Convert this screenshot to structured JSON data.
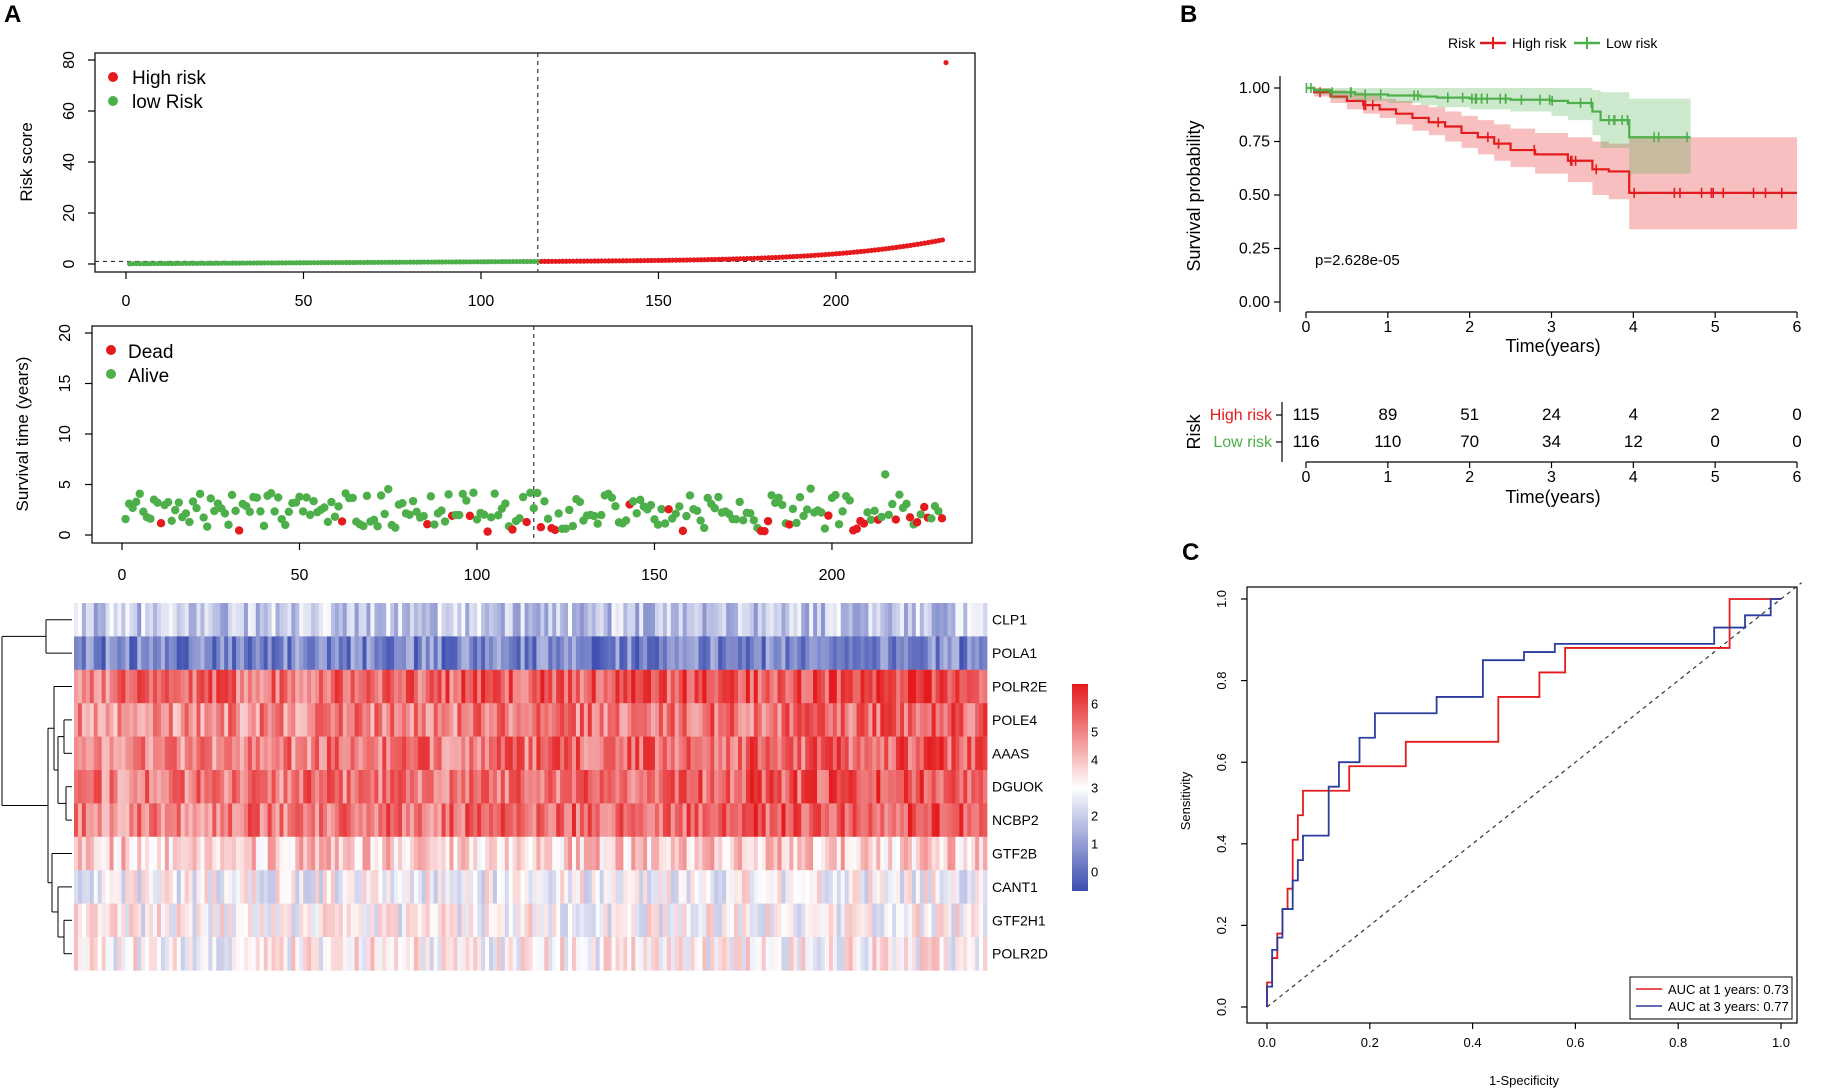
{
  "panels": {
    "a": "A",
    "b": "B",
    "c": "C"
  },
  "colors": {
    "red": "#e41a1c",
    "green": "#4daf4a",
    "blue": "#3b4cb0",
    "aucRed": "#e41a1c",
    "aucBlue": "#2b3d9e"
  },
  "chart_data": [
    {
      "id": "risk-score",
      "type": "scatter",
      "ylabel": "Risk score",
      "xlim": [
        0,
        231
      ],
      "ylim": [
        0,
        80
      ],
      "xticks": [
        "0",
        "50",
        "100",
        "150",
        "200"
      ],
      "yticks": [
        "0",
        "20",
        "40",
        "60",
        "80"
      ],
      "cutoff_index": 116,
      "cutoff_value": 1,
      "n_patients": 231,
      "legend": [
        {
          "label": "High risk",
          "color": "#e41a1c"
        },
        {
          "label": "low Risk",
          "color": "#4daf4a"
        }
      ],
      "max_point": {
        "x": 231,
        "y": 79
      }
    },
    {
      "id": "survival-time",
      "type": "scatter",
      "ylabel": "Survival time (years)",
      "xlim": [
        0,
        231
      ],
      "ylim": [
        0,
        20
      ],
      "xticks": [
        "0",
        "50",
        "100",
        "150",
        "200"
      ],
      "yticks": [
        "0",
        "5",
        "10",
        "15",
        "20"
      ],
      "cutoff_index": 116,
      "legend": [
        {
          "label": "Dead",
          "color": "#e41a1c"
        },
        {
          "label": "Alive",
          "color": "#4daf4a"
        }
      ]
    },
    {
      "id": "heatmap",
      "type": "heatmap",
      "genes": [
        "CLP1",
        "POLA1",
        "POLR2E",
        "POLE4",
        "AAAS",
        "DGUOK",
        "NCBP2",
        "GTF2B",
        "CANT1",
        "GTF2H1",
        "POLR2D"
      ],
      "gene_means": [
        1.9,
        0.5,
        5.2,
        4.7,
        4.9,
        5.0,
        5.0,
        3.8,
        2.9,
        3.0,
        3.1
      ],
      "colorbar_ticks": [
        "6",
        "5",
        "4",
        "3",
        "2",
        "1",
        "0"
      ],
      "colorbar_range": [
        -0.7,
        6.7
      ]
    },
    {
      "id": "km",
      "type": "line",
      "title_legend": "Risk",
      "xlabel": "Time(years)",
      "ylabel": "Survival probability",
      "xlim": [
        0,
        6
      ],
      "ylim": [
        0,
        1
      ],
      "xticks": [
        "0",
        "1",
        "2",
        "3",
        "4",
        "5",
        "6"
      ],
      "yticks": [
        "0.00",
        "0.25",
        "0.50",
        "0.75",
        "1.00"
      ],
      "pvalue": "p=2.628e-05",
      "series": [
        {
          "name": "High risk",
          "color": "#e41a1c",
          "x": [
            0,
            0.1,
            0.3,
            0.5,
            0.7,
            0.9,
            1.1,
            1.3,
            1.5,
            1.7,
            1.9,
            2.1,
            2.3,
            2.5,
            2.8,
            3.2,
            3.5,
            3.7,
            3.95,
            6
          ],
          "y": [
            1.0,
            0.98,
            0.96,
            0.94,
            0.92,
            0.9,
            0.88,
            0.86,
            0.84,
            0.82,
            0.79,
            0.77,
            0.74,
            0.71,
            0.69,
            0.66,
            0.62,
            0.61,
            0.51,
            0.51
          ],
          "lo": [
            1.0,
            0.96,
            0.93,
            0.9,
            0.88,
            0.86,
            0.83,
            0.8,
            0.78,
            0.75,
            0.72,
            0.69,
            0.66,
            0.63,
            0.6,
            0.56,
            0.5,
            0.48,
            0.34,
            0.34
          ],
          "hi": [
            1.0,
            1.0,
            0.99,
            0.98,
            0.97,
            0.95,
            0.94,
            0.92,
            0.91,
            0.89,
            0.87,
            0.85,
            0.83,
            0.81,
            0.79,
            0.77,
            0.75,
            0.74,
            0.77,
            0.77
          ]
        },
        {
          "name": "Low risk",
          "color": "#4daf4a",
          "x": [
            0,
            0.1,
            0.3,
            0.6,
            1.0,
            1.4,
            1.6,
            2.0,
            2.5,
            3.0,
            3.2,
            3.5,
            3.6,
            3.95,
            4.7
          ],
          "y": [
            1.0,
            0.99,
            0.98,
            0.97,
            0.965,
            0.96,
            0.955,
            0.95,
            0.945,
            0.94,
            0.93,
            0.89,
            0.85,
            0.77,
            0.77
          ],
          "lo": [
            1.0,
            0.97,
            0.95,
            0.94,
            0.93,
            0.92,
            0.91,
            0.9,
            0.89,
            0.87,
            0.85,
            0.78,
            0.72,
            0.6,
            0.6
          ],
          "hi": [
            1.0,
            1.0,
            1.0,
            1.0,
            1.0,
            1.0,
            1.0,
            1.0,
            1.0,
            1.0,
            1.0,
            0.99,
            0.98,
            0.95,
            0.95
          ]
        }
      ]
    },
    {
      "id": "risk-table",
      "type": "table",
      "ylabel": "Risk",
      "xlabel": "Time(years)",
      "xticks": [
        "0",
        "1",
        "2",
        "3",
        "4",
        "5",
        "6"
      ],
      "rows": [
        {
          "name": "High risk",
          "color": "#e41a1c",
          "values": [
            "115",
            "89",
            "51",
            "24",
            "4",
            "2",
            "0"
          ]
        },
        {
          "name": "Low risk",
          "color": "#4daf4a",
          "values": [
            "116",
            "110",
            "70",
            "34",
            "12",
            "0",
            "0"
          ]
        }
      ]
    },
    {
      "id": "roc",
      "type": "line",
      "xlabel": "1-Specificity",
      "ylabel": "Sensitivity",
      "xlim": [
        0,
        1
      ],
      "ylim": [
        0,
        1
      ],
      "xticks": [
        "0.0",
        "0.2",
        "0.4",
        "0.6",
        "0.8",
        "1.0"
      ],
      "yticks": [
        "0.0",
        "0.2",
        "0.4",
        "0.6",
        "0.8",
        "1.0"
      ],
      "series": [
        {
          "name": "AUC at 1 years: 0.73",
          "color": "#e41a1c",
          "x": [
            0,
            0,
            0.01,
            0.01,
            0.02,
            0.02,
            0.03,
            0.03,
            0.04,
            0.04,
            0.05,
            0.05,
            0.06,
            0.06,
            0.07,
            0.07,
            0.16,
            0.16,
            0.27,
            0.27,
            0.45,
            0.45,
            0.53,
            0.53,
            0.58,
            0.58,
            0.9,
            0.9,
            1.0
          ],
          "y": [
            0,
            0.06,
            0.06,
            0.12,
            0.12,
            0.18,
            0.18,
            0.24,
            0.24,
            0.29,
            0.29,
            0.41,
            0.41,
            0.47,
            0.47,
            0.53,
            0.53,
            0.59,
            0.59,
            0.65,
            0.65,
            0.76,
            0.76,
            0.82,
            0.82,
            0.88,
            0.88,
            1.0,
            1.0
          ]
        },
        {
          "name": "AUC at 3 years: 0.77",
          "color": "#2b3d9e",
          "x": [
            0,
            0,
            0.01,
            0.01,
            0.02,
            0.02,
            0.03,
            0.03,
            0.05,
            0.05,
            0.06,
            0.06,
            0.07,
            0.07,
            0.12,
            0.12,
            0.14,
            0.14,
            0.18,
            0.18,
            0.21,
            0.21,
            0.33,
            0.33,
            0.42,
            0.42,
            0.5,
            0.5,
            0.56,
            0.56,
            0.87,
            0.87,
            0.93,
            0.93,
            0.98,
            0.98,
            1.0
          ],
          "y": [
            0,
            0.05,
            0.05,
            0.14,
            0.14,
            0.17,
            0.17,
            0.24,
            0.24,
            0.31,
            0.31,
            0.36,
            0.36,
            0.42,
            0.42,
            0.54,
            0.54,
            0.6,
            0.6,
            0.66,
            0.66,
            0.72,
            0.72,
            0.76,
            0.76,
            0.85,
            0.85,
            0.87,
            0.87,
            0.89,
            0.89,
            0.93,
            0.93,
            0.96,
            0.96,
            1.0,
            1.0
          ]
        }
      ]
    }
  ]
}
